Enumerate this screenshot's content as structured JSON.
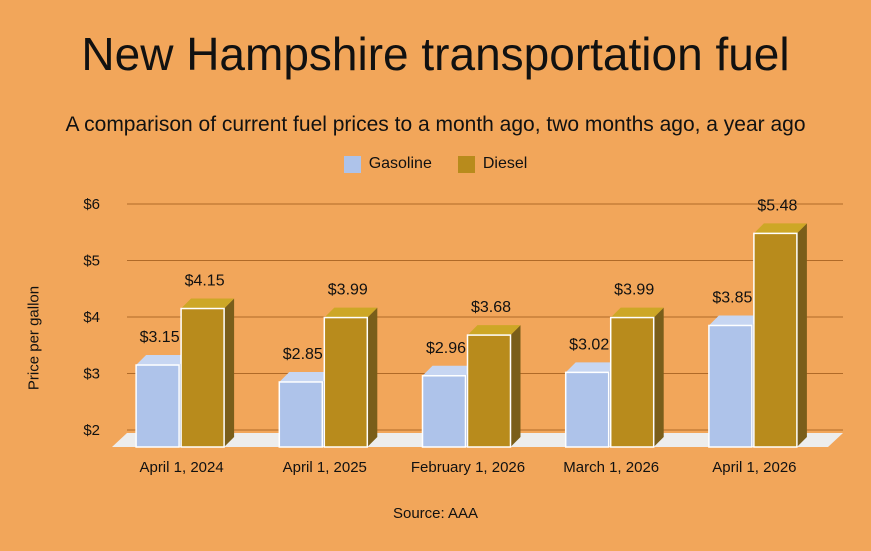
{
  "chart_data": {
    "type": "bar",
    "title": "New Hampshire transportation fuel",
    "subtitle": "A comparison of current fuel prices to a month ago, two months ago, a year ago",
    "xlabel": "",
    "ylabel": "Price per gallon",
    "ylim": [
      2,
      6
    ],
    "yticks": [
      "$2",
      "$3",
      "$4",
      "$5",
      "$6"
    ],
    "ytick_values": [
      2,
      3,
      4,
      5,
      6
    ],
    "categories": [
      "April 1, 2024",
      "April 1, 2025",
      "February 1, 2026",
      "March 1, 2026",
      "April 1, 2026"
    ],
    "series": [
      {
        "name": "Gasoline",
        "values": [
          3.15,
          2.85,
          2.96,
          3.02,
          3.85
        ],
        "labels": [
          "$3.15",
          "$2.85",
          "$2.96",
          "$3.02",
          "$3.85"
        ],
        "color": "#AEC3EA"
      },
      {
        "name": "Diesel",
        "values": [
          4.15,
          3.99,
          3.68,
          3.99,
          5.48
        ],
        "labels": [
          "$4.15",
          "$3.99",
          "$3.68",
          "$3.99",
          "$5.48"
        ],
        "color": "#B88B1C"
      }
    ],
    "source": "Source:  AAA",
    "grid": true,
    "legend_position": "top-center"
  },
  "colors": {
    "background": "#F2A65A",
    "gridline": "#B06A28",
    "floor": "#EDEDED",
    "diesel_top": "#CDA726",
    "diesel_side": "#7A5E1A",
    "gasoline_top": "#C7D6F2",
    "gasoline_side": "#8D9FC4"
  }
}
